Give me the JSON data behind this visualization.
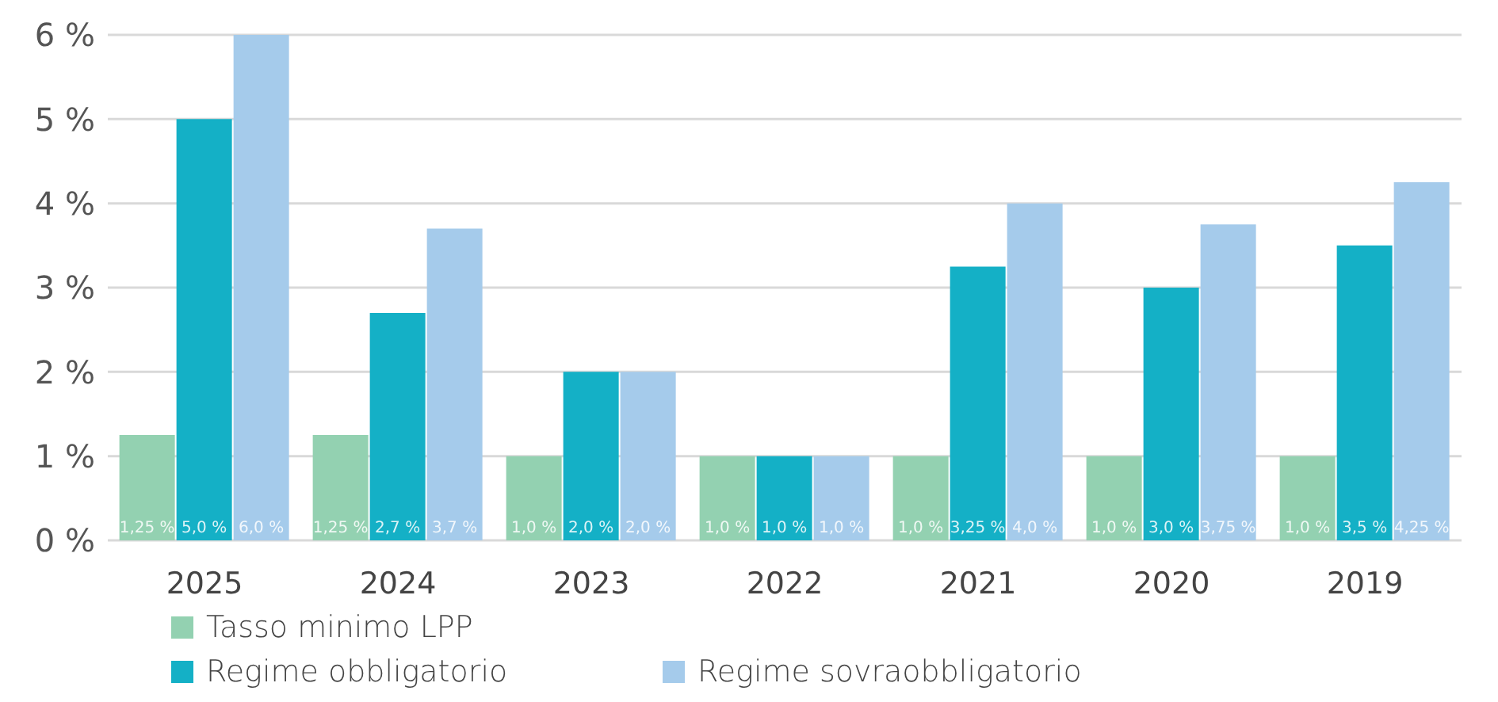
{
  "chart_data": {
    "type": "bar",
    "categories": [
      "2025",
      "2024",
      "2023",
      "2022",
      "2021",
      "2020",
      "2019"
    ],
    "series": [
      {
        "name": "Tasso minimo LPP",
        "color": "#93d1b1",
        "values": [
          1.25,
          1.25,
          1.0,
          1.0,
          1.0,
          1.0,
          1.0
        ],
        "value_labels": [
          "1,25 %",
          "1,25 %",
          "1,0 %",
          "1,0 %",
          "1,0 %",
          "1,0 %",
          "1,0 %"
        ]
      },
      {
        "name": "Regime obbligatorio",
        "color": "#14b0c6",
        "values": [
          5.0,
          2.7,
          2.0,
          1.0,
          3.25,
          3.0,
          3.5
        ],
        "value_labels": [
          "5,0 %",
          "2,7 %",
          "2,0 %",
          "1,0 %",
          "3,25 %",
          "3,0 %",
          "3,5 %"
        ]
      },
      {
        "name": "Regime sovraobbligatorio",
        "color": "#a5cbeb",
        "values": [
          6.0,
          3.7,
          2.0,
          1.0,
          4.0,
          3.75,
          4.25
        ],
        "value_labels": [
          "6,0 %",
          "3,7 %",
          "2,0 %",
          "1,0 %",
          "4,0 %",
          "3,75 %",
          "4,25 %"
        ]
      }
    ],
    "ylim": [
      0,
      6
    ],
    "yticks": [
      {
        "value": 0,
        "label": "0 %"
      },
      {
        "value": 1,
        "label": "1 %"
      },
      {
        "value": 2,
        "label": "2 %"
      },
      {
        "value": 3,
        "label": "3 %"
      },
      {
        "value": 4,
        "label": "4 %"
      },
      {
        "value": 5,
        "label": "5 %"
      },
      {
        "value": 6,
        "label": "6 %"
      }
    ],
    "grid": "y",
    "legend": "bottom left"
  }
}
